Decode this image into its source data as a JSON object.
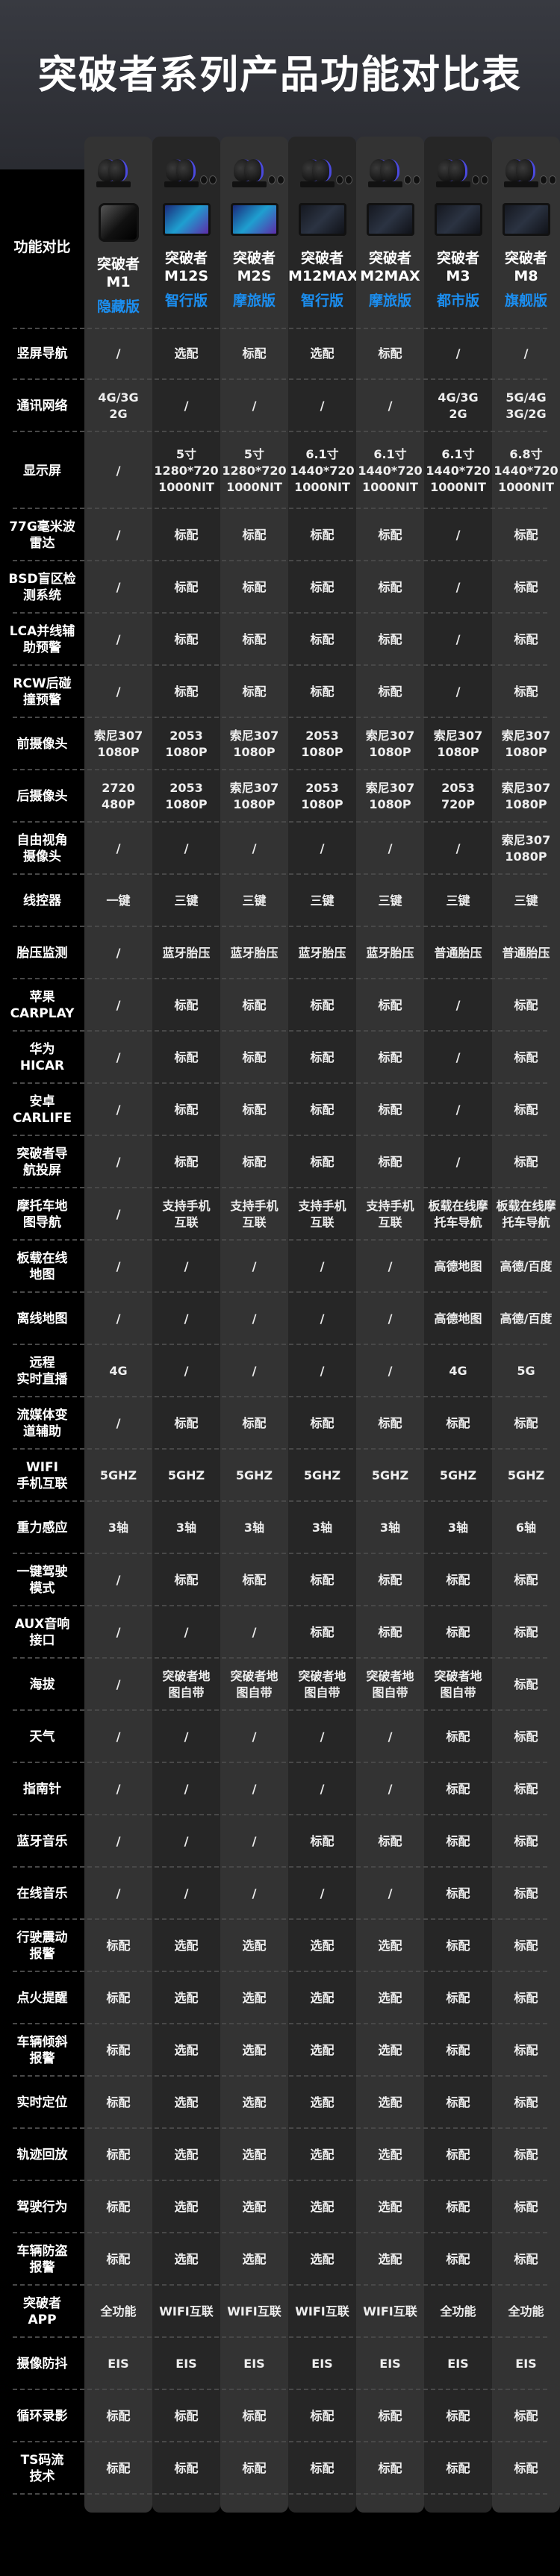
{
  "title": "突破者系列产品功能对比表",
  "header_label": "功能对比",
  "colors": {
    "edition": "#1b8ef0",
    "col_light": "#333333",
    "col_dark": "#262626"
  },
  "products": [
    {
      "name": "突破者\nM1",
      "edition": "隐藏版"
    },
    {
      "name": "突破者\nM12S",
      "edition": "智行版"
    },
    {
      "name": "突破者\nM2S",
      "edition": "摩旅版"
    },
    {
      "name": "突破者\nM12MAX",
      "edition": "智行版"
    },
    {
      "name": "突破者\nM2MAX",
      "edition": "摩旅版"
    },
    {
      "name": "突破者\nM3",
      "edition": "都市版"
    },
    {
      "name": "突破者\nM8",
      "edition": "旗舰版"
    }
  ],
  "rows": [
    {
      "label": "竖屏导航",
      "values": [
        "/",
        "选配",
        "标配",
        "选配",
        "标配",
        "/",
        "/"
      ]
    },
    {
      "label": "通讯网络",
      "values": [
        "4G/3G\n2G",
        "/",
        "/",
        "/",
        "/",
        "4G/3G\n2G",
        "5G/4G\n3G/2G"
      ]
    },
    {
      "label": "显示屏",
      "values": [
        "/",
        "5寸\n1280*720\n1000NIT",
        "5寸\n1280*720\n1000NIT",
        "6.1寸\n1440*720\n1000NIT",
        "6.1寸\n1440*720\n1000NIT",
        "6.1寸\n1440*720\n1000NIT",
        "6.8寸\n1440*720\n1000NIT"
      ]
    },
    {
      "label": "77G毫米波\n雷达",
      "values": [
        "/",
        "标配",
        "标配",
        "标配",
        "标配",
        "/",
        "标配"
      ]
    },
    {
      "label": "BSD盲区检\n测系统",
      "values": [
        "/",
        "标配",
        "标配",
        "标配",
        "标配",
        "/",
        "标配"
      ]
    },
    {
      "label": "LCA并线辅\n助预警",
      "values": [
        "/",
        "标配",
        "标配",
        "标配",
        "标配",
        "/",
        "标配"
      ]
    },
    {
      "label": "RCW后碰\n撞预警",
      "values": [
        "/",
        "标配",
        "标配",
        "标配",
        "标配",
        "/",
        "标配"
      ]
    },
    {
      "label": "前摄像头",
      "values": [
        "索尼307\n1080P",
        "2053\n1080P",
        "索尼307\n1080P",
        "2053\n1080P",
        "索尼307\n1080P",
        "索尼307\n1080P",
        "索尼307\n1080P"
      ]
    },
    {
      "label": "后摄像头",
      "values": [
        "2720\n480P",
        "2053\n1080P",
        "索尼307\n1080P",
        "2053\n1080P",
        "索尼307\n1080P",
        "2053\n720P",
        "索尼307\n1080P"
      ]
    },
    {
      "label": "自由视角\n摄像头",
      "values": [
        "/",
        "/",
        "/",
        "/",
        "/",
        "/",
        "索尼307\n1080P"
      ]
    },
    {
      "label": "线控器",
      "values": [
        "一键",
        "三键",
        "三键",
        "三键",
        "三键",
        "三键",
        "三键"
      ]
    },
    {
      "label": "胎压监测",
      "values": [
        "/",
        "蓝牙胎压",
        "蓝牙胎压",
        "蓝牙胎压",
        "蓝牙胎压",
        "普通胎压",
        "普通胎压"
      ]
    },
    {
      "label": "苹果\nCARPLAY",
      "values": [
        "/",
        "标配",
        "标配",
        "标配",
        "标配",
        "/",
        "标配"
      ]
    },
    {
      "label": "华为\nHICAR",
      "values": [
        "/",
        "标配",
        "标配",
        "标配",
        "标配",
        "/",
        "标配"
      ]
    },
    {
      "label": "安卓\nCARLIFE",
      "values": [
        "/",
        "标配",
        "标配",
        "标配",
        "标配",
        "/",
        "标配"
      ]
    },
    {
      "label": "突破者导\n航投屏",
      "values": [
        "/",
        "标配",
        "标配",
        "标配",
        "标配",
        "/",
        "标配"
      ]
    },
    {
      "label": "摩托车地\n图导航",
      "values": [
        "/",
        "支持手机\n互联",
        "支持手机\n互联",
        "支持手机\n互联",
        "支持手机\n互联",
        "板载在线摩\n托车导航",
        "板载在线摩\n托车导航"
      ]
    },
    {
      "label": "板载在线\n地图",
      "values": [
        "/",
        "/",
        "/",
        "/",
        "/",
        "高德地图",
        "高德/百度"
      ]
    },
    {
      "label": "离线地图",
      "values": [
        "/",
        "/",
        "/",
        "/",
        "/",
        "高德地图",
        "高德/百度"
      ]
    },
    {
      "label": "远程\n实时直播",
      "values": [
        "4G",
        "/",
        "/",
        "/",
        "/",
        "4G",
        "5G"
      ]
    },
    {
      "label": "流媒体变\n道辅助",
      "values": [
        "/",
        "标配",
        "标配",
        "标配",
        "标配",
        "标配",
        "标配"
      ]
    },
    {
      "label": "WIFI\n手机互联",
      "values": [
        "5GHZ",
        "5GHZ",
        "5GHZ",
        "5GHZ",
        "5GHZ",
        "5GHZ",
        "5GHZ"
      ]
    },
    {
      "label": "重力感应",
      "values": [
        "3轴",
        "3轴",
        "3轴",
        "3轴",
        "3轴",
        "3轴",
        "6轴"
      ]
    },
    {
      "label": "一键驾驶\n模式",
      "values": [
        "/",
        "标配",
        "标配",
        "标配",
        "标配",
        "标配",
        "标配"
      ]
    },
    {
      "label": "AUX音响\n接口",
      "values": [
        "/",
        "/",
        "/",
        "标配",
        "标配",
        "标配",
        "标配"
      ]
    },
    {
      "label": "海拔",
      "values": [
        "/",
        "突破者地\n图自带",
        "突破者地\n图自带",
        "突破者地\n图自带",
        "突破者地\n图自带",
        "突破者地\n图自带",
        "标配"
      ]
    },
    {
      "label": "天气",
      "values": [
        "/",
        "/",
        "/",
        "/",
        "/",
        "标配",
        "标配"
      ]
    },
    {
      "label": "指南针",
      "values": [
        "/",
        "/",
        "/",
        "/",
        "/",
        "标配",
        "标配"
      ]
    },
    {
      "label": "蓝牙音乐",
      "values": [
        "/",
        "/",
        "/",
        "标配",
        "标配",
        "标配",
        "标配"
      ]
    },
    {
      "label": "在线音乐",
      "values": [
        "/",
        "/",
        "/",
        "/",
        "/",
        "标配",
        "标配"
      ]
    },
    {
      "label": "行驶震动\n报警",
      "values": [
        "标配",
        "选配",
        "选配",
        "选配",
        "选配",
        "标配",
        "标配"
      ]
    },
    {
      "label": "点火提醒",
      "values": [
        "标配",
        "选配",
        "选配",
        "选配",
        "选配",
        "标配",
        "标配"
      ]
    },
    {
      "label": "车辆倾斜\n报警",
      "values": [
        "标配",
        "选配",
        "选配",
        "选配",
        "选配",
        "标配",
        "标配"
      ]
    },
    {
      "label": "实时定位",
      "values": [
        "标配",
        "选配",
        "选配",
        "选配",
        "选配",
        "标配",
        "标配"
      ]
    },
    {
      "label": "轨迹回放",
      "values": [
        "标配",
        "选配",
        "选配",
        "选配",
        "选配",
        "标配",
        "标配"
      ]
    },
    {
      "label": "驾驶行为",
      "values": [
        "标配",
        "选配",
        "选配",
        "选配",
        "选配",
        "标配",
        "标配"
      ]
    },
    {
      "label": "车辆防盗\n报警",
      "values": [
        "标配",
        "选配",
        "选配",
        "选配",
        "选配",
        "标配",
        "标配"
      ]
    },
    {
      "label": "突破者\nAPP",
      "values": [
        "全功能",
        "WIFI互联",
        "WIFI互联",
        "WIFI互联",
        "WIFI互联",
        "全功能",
        "全功能"
      ]
    },
    {
      "label": "摄像防抖",
      "values": [
        "EIS",
        "EIS",
        "EIS",
        "EIS",
        "EIS",
        "EIS",
        "EIS"
      ]
    },
    {
      "label": "循环录影",
      "values": [
        "标配",
        "标配",
        "标配",
        "标配",
        "标配",
        "标配",
        "标配"
      ]
    },
    {
      "label": "TS码流\n技术",
      "values": [
        "标配",
        "标配",
        "标配",
        "标配",
        "标配",
        "标配",
        "标配"
      ]
    }
  ]
}
